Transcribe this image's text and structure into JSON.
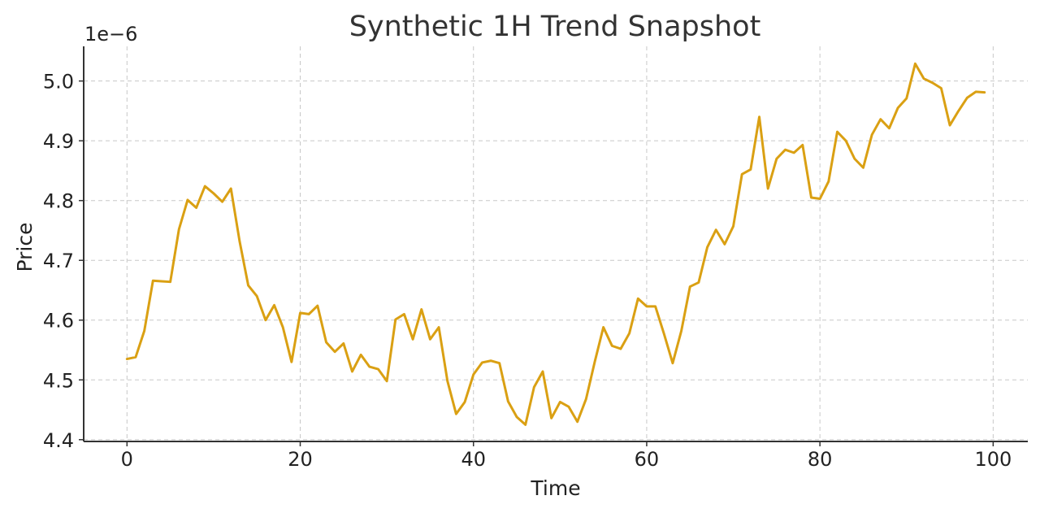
{
  "chart_data": {
    "type": "line",
    "title": "Synthetic 1H Trend Snapshot",
    "xlabel": "Time",
    "ylabel": "Price",
    "y_offset_label": "1e−6",
    "y_scale_factor": 1e-06,
    "xlim": [
      -5,
      104
    ],
    "ylim": [
      4.397,
      5.058
    ],
    "x_ticks": [
      0,
      20,
      40,
      60,
      80,
      100
    ],
    "x_tick_labels": [
      "0",
      "20",
      "40",
      "60",
      "80",
      "100"
    ],
    "y_ticks": [
      4.4,
      4.5,
      4.6,
      4.7,
      4.8,
      4.9,
      5.0
    ],
    "y_tick_labels": [
      "4.4",
      "4.5",
      "4.6",
      "4.7",
      "4.8",
      "4.9",
      "5.0"
    ],
    "grid": true,
    "line_color": "#DAA013",
    "series": [
      {
        "values": [
          4.535,
          4.538,
          4.582,
          4.666,
          4.665,
          4.664,
          4.752,
          4.801,
          4.788,
          4.824,
          4.812,
          4.798,
          4.82,
          4.732,
          4.658,
          4.64,
          4.6,
          4.625,
          4.588,
          4.53,
          4.612,
          4.61,
          4.624,
          4.563,
          4.547,
          4.561,
          4.514,
          4.542,
          4.522,
          4.518,
          4.498,
          4.601,
          4.61,
          4.568,
          4.618,
          4.568,
          4.588,
          4.498,
          4.443,
          4.463,
          4.509,
          4.529,
          4.532,
          4.528,
          4.464,
          4.438,
          4.425,
          4.488,
          4.514,
          4.436,
          4.463,
          4.455,
          4.43,
          4.468,
          4.53,
          4.588,
          4.557,
          4.552,
          4.578,
          4.636,
          4.623,
          4.623,
          4.577,
          4.528,
          4.582,
          4.656,
          4.663,
          4.722,
          4.751,
          4.727,
          4.757,
          4.844,
          4.852,
          4.94,
          4.82,
          4.87,
          4.885,
          4.88,
          4.893,
          4.805,
          4.803,
          4.832,
          4.915,
          4.9,
          4.87,
          4.855,
          4.91,
          4.936,
          4.921,
          4.955,
          4.971,
          5.029,
          5.004,
          4.997,
          4.988,
          4.926,
          4.95,
          4.972,
          4.982,
          4.981
        ]
      }
    ]
  }
}
